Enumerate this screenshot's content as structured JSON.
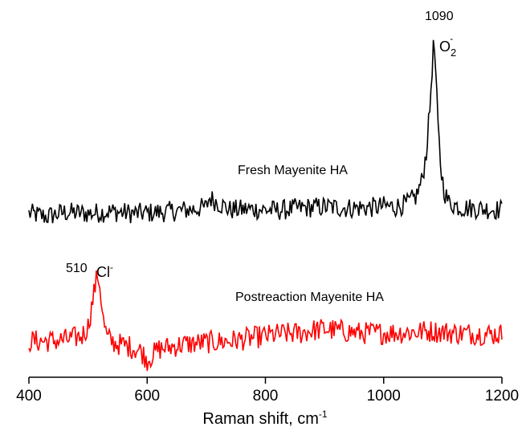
{
  "chart_data": {
    "type": "line",
    "xlabel": "Raman shift, cm",
    "xlabel_sup": "-1",
    "xlim": [
      400,
      1200
    ],
    "x_ticks": [
      400,
      600,
      800,
      1000,
      1200
    ],
    "y_axis_shown": false,
    "grid": false,
    "series": [
      {
        "name": "Fresh Mayenite HA",
        "color": "#000000",
        "baseline": "upper",
        "points": [
          [
            400,
            0.0
          ],
          [
            430,
            -0.05
          ],
          [
            460,
            0.02
          ],
          [
            500,
            0.0
          ],
          [
            540,
            0.03
          ],
          [
            580,
            0.0
          ],
          [
            620,
            0.02
          ],
          [
            660,
            0.05
          ],
          [
            700,
            0.1
          ],
          [
            705,
            0.26
          ],
          [
            740,
            0.06
          ],
          [
            780,
            0.07
          ],
          [
            820,
            0.05
          ],
          [
            860,
            0.09
          ],
          [
            900,
            0.11
          ],
          [
            940,
            0.09
          ],
          [
            980,
            0.1
          ],
          [
            1000,
            0.12
          ],
          [
            1020,
            0.11
          ],
          [
            1040,
            0.16
          ],
          [
            1055,
            0.28
          ],
          [
            1065,
            0.55
          ],
          [
            1072,
            1.0
          ],
          [
            1078,
            1.7
          ],
          [
            1082,
            2.4
          ],
          [
            1085,
            2.85
          ],
          [
            1088,
            2.3
          ],
          [
            1092,
            1.4
          ],
          [
            1097,
            0.7
          ],
          [
            1103,
            0.35
          ],
          [
            1110,
            0.18
          ],
          [
            1130,
            0.1
          ],
          [
            1160,
            0.08
          ],
          [
            1200,
            0.06
          ]
        ]
      },
      {
        "name": "Postreaction Mayenite HA",
        "color": "#ff0000",
        "baseline": "lower",
        "points": [
          [
            400,
            0.0
          ],
          [
            440,
            0.0
          ],
          [
            470,
            0.03
          ],
          [
            490,
            0.08
          ],
          [
            500,
            0.22
          ],
          [
            506,
            0.5
          ],
          [
            512,
            0.82
          ],
          [
            517,
            1.0
          ],
          [
            521,
            0.75
          ],
          [
            526,
            0.3
          ],
          [
            532,
            0.05
          ],
          [
            545,
            -0.03
          ],
          [
            570,
            -0.08
          ],
          [
            590,
            -0.15
          ],
          [
            600,
            -0.28
          ],
          [
            620,
            -0.12
          ],
          [
            660,
            -0.05
          ],
          [
            700,
            -0.02
          ],
          [
            740,
            0.0
          ],
          [
            780,
            0.05
          ],
          [
            820,
            0.1
          ],
          [
            860,
            0.12
          ],
          [
            880,
            0.16
          ],
          [
            900,
            0.18
          ],
          [
            920,
            0.16
          ],
          [
            960,
            0.12
          ],
          [
            1000,
            0.12
          ],
          [
            1040,
            0.13
          ],
          [
            1080,
            0.15
          ],
          [
            1120,
            0.12
          ],
          [
            1160,
            0.11
          ],
          [
            1200,
            0.1
          ]
        ]
      }
    ],
    "annotations": {
      "peak_1090": "1090",
      "o2_base": "O",
      "o2_sub": "2",
      "o2_sup": "-",
      "peak_510": "510",
      "cl_base": "Cl",
      "cl_sup": "-"
    }
  }
}
